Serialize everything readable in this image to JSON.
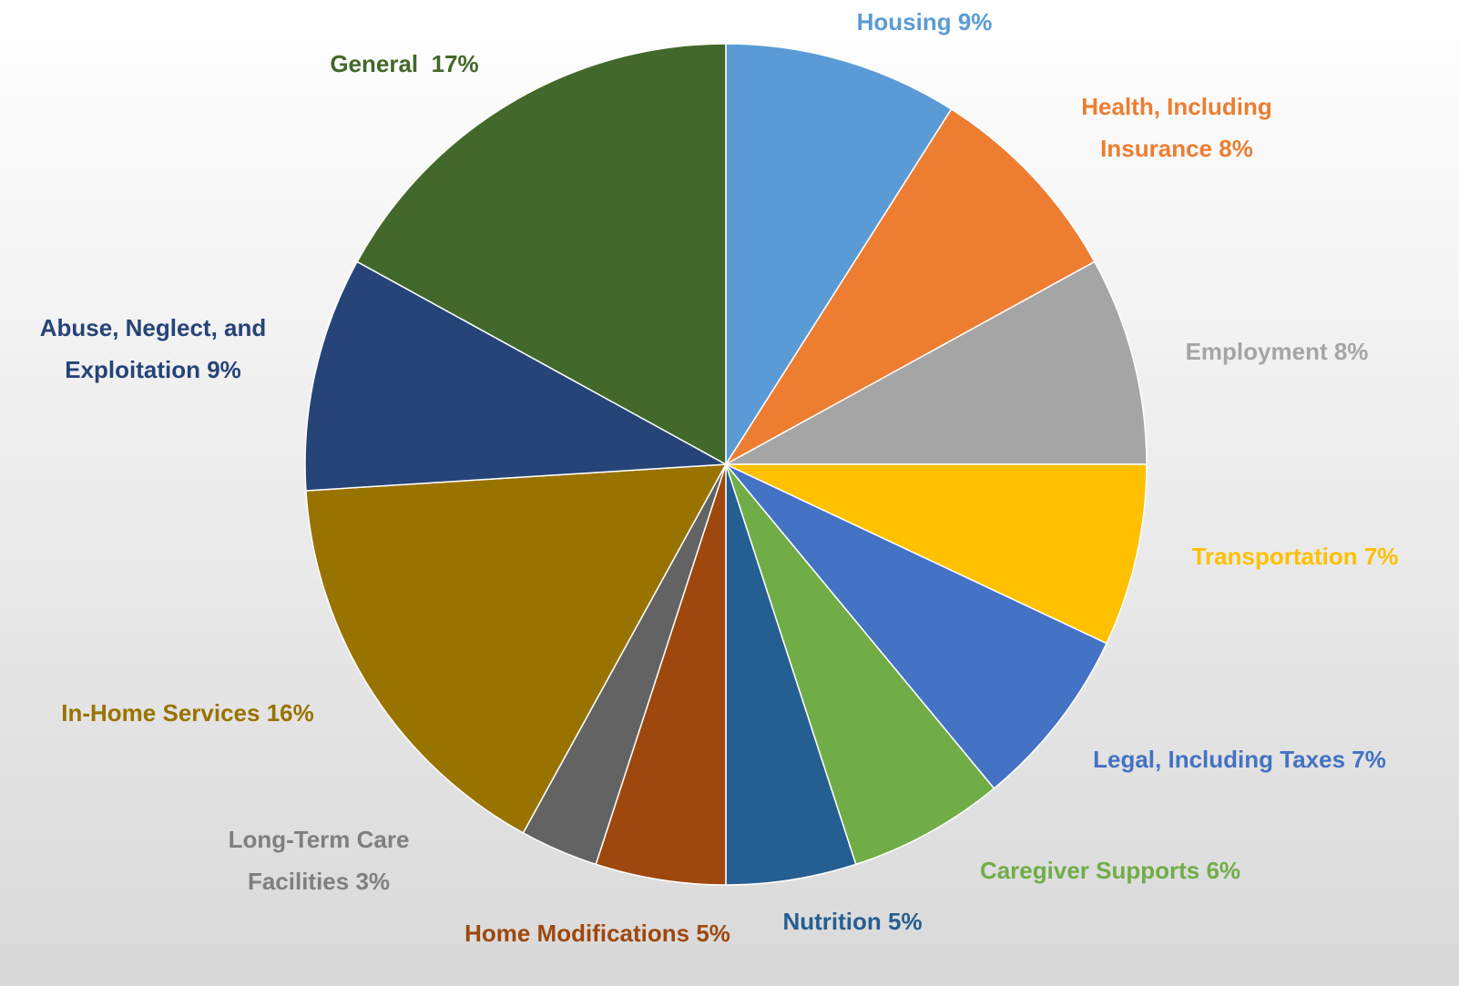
{
  "chart_data": {
    "type": "pie",
    "categories": [
      "Housing",
      "Health, Including Insurance",
      "Employment",
      "Transportation",
      "Legal, Including Taxes",
      "Caregiver Supports",
      "Nutrition",
      "Home Modifications",
      "Long-Term Care Facilities",
      "In-Home Services",
      "Abuse, Neglect, and Exploitation",
      "General "
    ],
    "values": [
      9,
      8,
      8,
      7,
      7,
      6,
      5,
      5,
      3,
      16,
      9,
      17
    ],
    "value_labels": [
      "9%",
      "8%",
      "8%",
      "7%",
      "7%",
      "6%",
      "5%",
      "5%",
      "3%",
      "16%",
      "9%",
      "17%"
    ],
    "colors": [
      "#5b9bd5",
      "#ed7d31",
      "#a5a5a5",
      "#ffc000",
      "#4472c4",
      "#70ad47",
      "#255e91",
      "#9e480e",
      "#636363",
      "#997300",
      "#264478",
      "#43682b"
    ]
  }
}
